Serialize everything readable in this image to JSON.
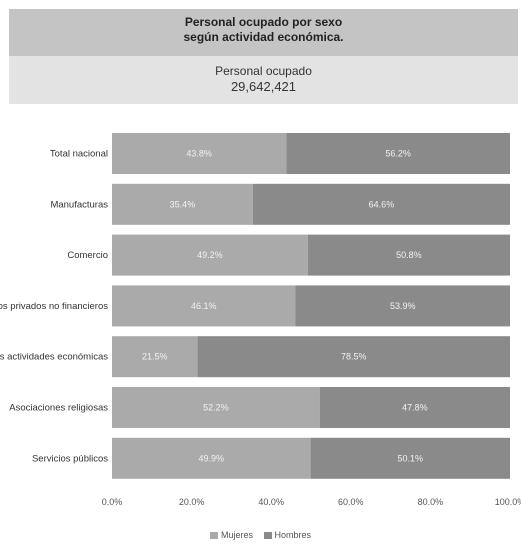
{
  "header": {
    "title_line1": "Personal ocupado por sexo",
    "title_line2": "según actividad económica.",
    "total_label": "Personal ocupado",
    "total_value": "29,642,421"
  },
  "colors": {
    "mujeres": "#aaaaaa",
    "hombres": "#8a8a8a"
  },
  "chart_data": {
    "type": "bar",
    "orientation": "horizontal",
    "stacked": true,
    "categories": [
      "Total nacional",
      "Manufacturas",
      "Comercio",
      "Servicios privados no financieros",
      "Otras actividades económicas",
      "Asociaciones religiosas",
      "Servicios públicos"
    ],
    "series": [
      {
        "name": "Mujeres",
        "values": [
          43.8,
          35.4,
          49.2,
          46.1,
          21.5,
          52.2,
          49.9
        ],
        "labels": [
          "43.8%",
          "35.4%",
          "49.2%",
          "46.1%",
          "21.5%",
          "52.2%",
          "49.9%"
        ]
      },
      {
        "name": "Hombres",
        "values": [
          56.2,
          64.6,
          50.8,
          53.9,
          78.5,
          47.8,
          50.1
        ],
        "labels": [
          "56.2%",
          "64.6%",
          "50.8%",
          "53.9%",
          "78.5%",
          "47.8%",
          "50.1%"
        ]
      }
    ],
    "xlim": [
      0,
      100
    ],
    "xticks": [
      0,
      20,
      40,
      60,
      80,
      100
    ],
    "xtick_labels": [
      "0.0%",
      "20.0%",
      "40.0%",
      "60.0%",
      "80.0%",
      "100.0%"
    ],
    "legend": {
      "position": "bottom",
      "items": [
        "Mujeres",
        "Hombres"
      ]
    },
    "grid": false
  }
}
